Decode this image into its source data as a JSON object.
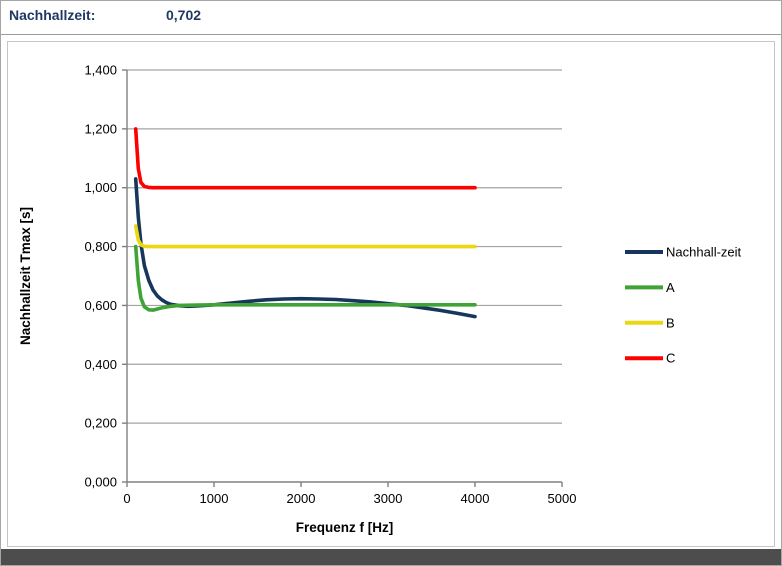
{
  "header": {
    "label": "Nachhallzeit:",
    "value": "0,702"
  },
  "colors": {
    "header_text": "#1F3864",
    "axis": "#808080",
    "grid": "#a3a3a3",
    "tick_text": "#000000",
    "bottom_bar": "#4d4d4d",
    "chart_border": "#c6c6c6"
  },
  "chart_data": {
    "type": "line",
    "title": "",
    "xlabel": "Frequenz f [Hz]",
    "ylabel": "Nachhallzeit Tmax [s]",
    "xlim": [
      0,
      5000
    ],
    "ylim": [
      0,
      1.4
    ],
    "xtick_values": [
      0,
      1000,
      2000,
      3000,
      4000,
      5000
    ],
    "xtick_labels": [
      "0",
      "1000",
      "2000",
      "3000",
      "4000",
      "5000"
    ],
    "ytick_values": [
      0,
      0.2,
      0.4,
      0.6,
      0.8,
      1.0,
      1.2,
      1.4
    ],
    "ytick_labels": [
      "0,000",
      "0,200",
      "0,400",
      "0,600",
      "0,800",
      "1,000",
      "1,200",
      "1,400"
    ],
    "grid": "horizontal",
    "legend_position": "right",
    "series": [
      {
        "name": "Nachhall-zeit",
        "color": "#17365D",
        "x": [
          100,
          130,
          160,
          200,
          250,
          300,
          350,
          400,
          450,
          500,
          600,
          700,
          800,
          1000,
          1200,
          1400,
          1600,
          1800,
          2000,
          2200,
          2400,
          2600,
          2800,
          3000,
          3200,
          3400,
          3600,
          3800,
          4000
        ],
        "y": [
          1.03,
          0.9,
          0.81,
          0.735,
          0.685,
          0.652,
          0.632,
          0.619,
          0.61,
          0.604,
          0.599,
          0.597,
          0.598,
          0.602,
          0.608,
          0.614,
          0.619,
          0.622,
          0.623,
          0.622,
          0.62,
          0.616,
          0.612,
          0.606,
          0.6,
          0.592,
          0.583,
          0.573,
          0.562
        ]
      },
      {
        "name": "A",
        "color": "#3FA435",
        "x": [
          100,
          130,
          160,
          200,
          250,
          300,
          350,
          400,
          500,
          600,
          800,
          1000,
          1500,
          2000,
          2500,
          3000,
          3500,
          4000
        ],
        "y": [
          0.8,
          0.685,
          0.625,
          0.595,
          0.585,
          0.584,
          0.588,
          0.592,
          0.597,
          0.6,
          0.601,
          0.602,
          0.602,
          0.602,
          0.602,
          0.602,
          0.602,
          0.602
        ]
      },
      {
        "name": "B",
        "color": "#EBD713",
        "x": [
          100,
          130,
          160,
          200,
          250,
          300,
          400,
          500,
          1000,
          1500,
          2000,
          2500,
          3000,
          3500,
          4000
        ],
        "y": [
          0.87,
          0.822,
          0.806,
          0.801,
          0.8,
          0.8,
          0.8,
          0.8,
          0.8,
          0.8,
          0.8,
          0.8,
          0.8,
          0.8,
          0.8
        ]
      },
      {
        "name": "C",
        "color": "#FF0000",
        "x": [
          100,
          130,
          160,
          200,
          250,
          300,
          400,
          500,
          1000,
          1500,
          2000,
          2500,
          3000,
          3500,
          4000
        ],
        "y": [
          1.2,
          1.065,
          1.018,
          1.004,
          1.001,
          1.0,
          1.0,
          1.0,
          1.0,
          1.0,
          1.0,
          1.0,
          1.0,
          1.0,
          1.0
        ]
      }
    ]
  }
}
